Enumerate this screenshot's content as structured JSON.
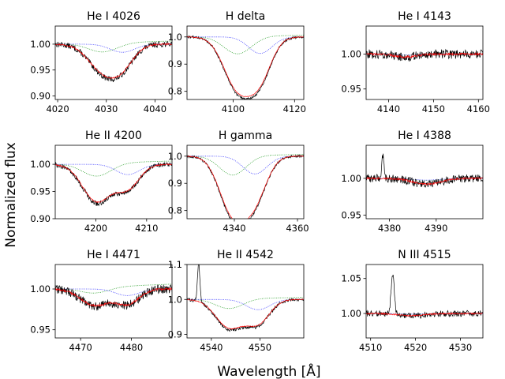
{
  "figure": {
    "xlabel": "Wavelength [Å]",
    "ylabel": "Normalized flux"
  },
  "colors": {
    "observed": "#000000",
    "model": "#ff0000",
    "component1": "#2ca02c",
    "component2": "#3a3aff"
  },
  "chart_data": [
    {
      "type": "line",
      "title": "He I 4026",
      "xlim": [
        4019.5,
        4043.5
      ],
      "ylim": [
        0.893,
        1.035
      ],
      "xticks": [
        4020,
        4030,
        4040
      ],
      "yticks": [
        0.9,
        0.95,
        1.0
      ],
      "ytick_labels": [
        "0.90",
        "0.95",
        "1.00"
      ],
      "lines": [
        {
          "center": 4029.3,
          "depth": 0.05,
          "width": 3.0
        },
        {
          "center": 4033.3,
          "depth": 0.035,
          "width": 2.5
        }
      ],
      "spike": null,
      "noise": 0.005
    },
    {
      "type": "line",
      "title": "H delta",
      "xlim": [
        4085,
        4123
      ],
      "ylim": [
        0.77,
        1.04
      ],
      "xticks": [
        4100,
        4120
      ],
      "yticks": [
        0.8,
        0.9,
        1.0
      ],
      "ytick_labels": [
        "0.8",
        "0.9",
        "1.0"
      ],
      "lines": [
        {
          "center": 4101.5,
          "depth": 0.185,
          "width": 4.5
        },
        {
          "center": 4108.8,
          "depth": 0.135,
          "width": 3.8
        }
      ],
      "spike": null,
      "noise": 0.004
    },
    {
      "type": "line",
      "title": "He I 4143",
      "xlim": [
        4135,
        4161
      ],
      "ylim": [
        0.935,
        1.04
      ],
      "xticks": [
        4140,
        4150,
        4160
      ],
      "yticks": [
        0.95,
        1.0
      ],
      "ytick_labels": [
        "0.95",
        "1.00"
      ],
      "lines": [
        {
          "center": 4143.8,
          "depth": 0.004,
          "width": 2.5
        }
      ],
      "spike": null,
      "noise": 0.006
    },
    {
      "type": "line",
      "title": "He II 4200",
      "xlim": [
        4192,
        4215
      ],
      "ylim": [
        0.9,
        1.035
      ],
      "xticks": [
        4200,
        4210
      ],
      "yticks": [
        0.9,
        0.95,
        1.0
      ],
      "ytick_labels": [
        "0.90",
        "0.95",
        "1.00"
      ],
      "lines": [
        {
          "center": 4200.2,
          "depth": 0.068,
          "width": 2.8
        },
        {
          "center": 4206.3,
          "depth": 0.042,
          "width": 2.3
        }
      ],
      "spike": null,
      "noise": 0.004
    },
    {
      "type": "line",
      "title": "H gamma",
      "xlim": [
        4325,
        4362
      ],
      "ylim": [
        0.77,
        1.04
      ],
      "xticks": [
        4340,
        4360
      ],
      "yticks": [
        0.8,
        0.9,
        1.0
      ],
      "ytick_labels": [
        "0.8",
        "0.9",
        "1.0"
      ],
      "lines": [
        {
          "center": 4339.5,
          "depth": 0.205,
          "width": 4.2
        },
        {
          "center": 4346.5,
          "depth": 0.145,
          "width": 3.8
        }
      ],
      "spike": null,
      "noise": 0.004
    },
    {
      "type": "line",
      "title": "He I 4388",
      "xlim": [
        4375,
        4400
      ],
      "ylim": [
        0.945,
        1.045
      ],
      "xticks": [
        4380,
        4390
      ],
      "yticks": [
        0.95,
        1.0
      ],
      "ytick_labels": [
        "0.95",
        "1.00"
      ],
      "lines": [
        {
          "center": 4388.0,
          "depth": 0.008,
          "width": 3.0
        }
      ],
      "spike": {
        "x": 4378.6,
        "h": 0.032,
        "w": 0.25
      },
      "noise": 0.005
    },
    {
      "type": "line",
      "title": "He I 4471",
      "xlim": [
        4465,
        4488
      ],
      "ylim": [
        0.94,
        1.03
      ],
      "xticks": [
        4470,
        4480
      ],
      "yticks": [
        0.95,
        1.0
      ],
      "ytick_labels": [
        "0.95",
        "1.00"
      ],
      "lines": [
        {
          "center": 4472.8,
          "depth": 0.02,
          "width": 2.8
        },
        {
          "center": 4479.2,
          "depth": 0.018,
          "width": 2.3
        }
      ],
      "spike": null,
      "noise": 0.005
    },
    {
      "type": "line",
      "title": "He II 4542",
      "xlim": [
        4535,
        4559
      ],
      "ylim": [
        0.89,
        1.1
      ],
      "xticks": [
        4540,
        4550
      ],
      "yticks": [
        0.9,
        1.0,
        1.1
      ],
      "ytick_labels": [
        "0.9",
        "1.0",
        "1.1"
      ],
      "lines": [
        {
          "center": 4543.7,
          "depth": 0.08,
          "width": 2.8
        },
        {
          "center": 4549.6,
          "depth": 0.065,
          "width": 2.4
        }
      ],
      "spike": {
        "x": 4537.4,
        "h": 0.11,
        "w": 0.25
      },
      "noise": 0.004
    },
    {
      "type": "line",
      "title": "N III 4515",
      "xlim": [
        4509,
        4535
      ],
      "ylim": [
        0.965,
        1.07
      ],
      "xticks": [
        4510,
        4520,
        4530
      ],
      "yticks": [
        1.0,
        1.05
      ],
      "ytick_labels": [
        "1.00",
        "1.05"
      ],
      "lines": [
        {
          "center": 4519.0,
          "depth": 0.003,
          "width": 3.0
        }
      ],
      "spike": {
        "x": 4514.9,
        "h": 0.058,
        "w": 0.35
      },
      "noise": 0.004
    }
  ]
}
